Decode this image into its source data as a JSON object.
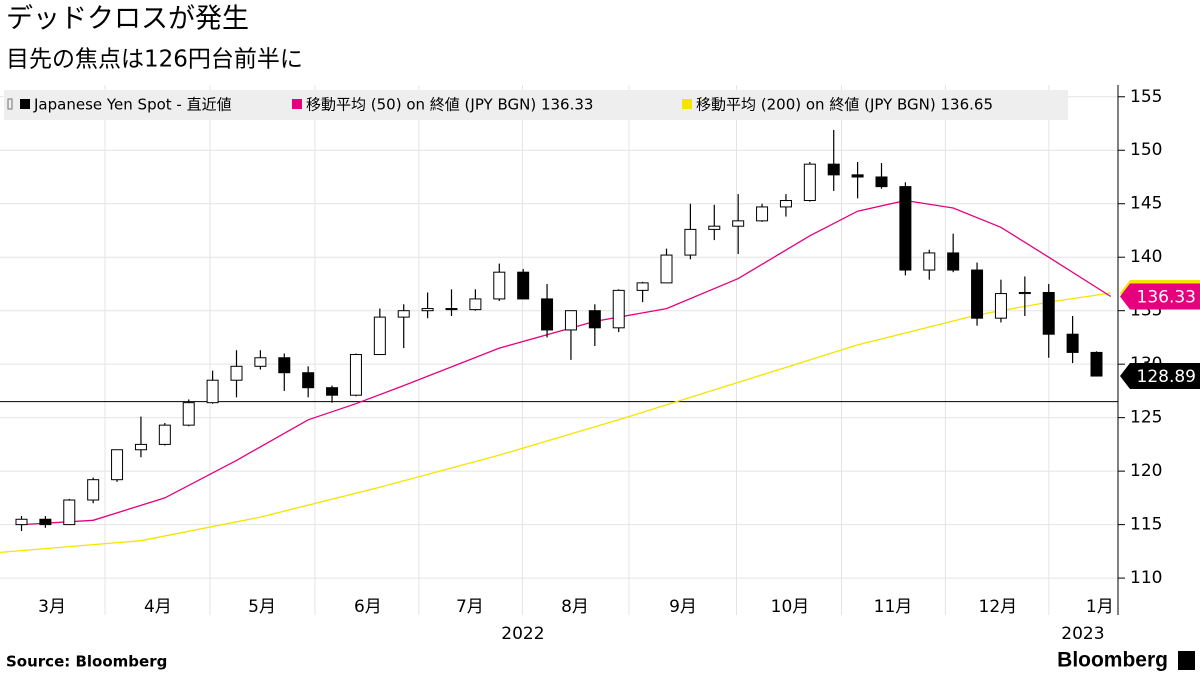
{
  "chart_data": {
    "type": "candlestick",
    "title": "デッドクロスが発生",
    "subtitle": "目先の焦点は126円台前半に",
    "source": "Source:  Bloomberg",
    "brand": "Bloomberg",
    "ylim": [
      108.7,
      156.1
    ],
    "yticks": [
      110,
      115,
      120,
      125,
      130,
      135,
      140,
      145,
      150,
      155
    ],
    "xlim": [
      -0.9,
      45.9
    ],
    "xticks": [
      {
        "value": 1.28,
        "label": "3月"
      },
      {
        "value": 5.71,
        "label": "4月"
      },
      {
        "value": 10.07,
        "label": "5月"
      },
      {
        "value": 14.5,
        "label": "6月"
      },
      {
        "value": 18.77,
        "label": "7月"
      },
      {
        "value": 23.17,
        "label": "8月"
      },
      {
        "value": 27.69,
        "label": "9月"
      },
      {
        "value": 32.17,
        "label": "10月"
      },
      {
        "value": 36.48,
        "label": "11月"
      },
      {
        "value": 40.87,
        "label": "12月"
      },
      {
        "value": 45.14,
        "label": "1月"
      }
    ],
    "year_ticks": [
      {
        "value": 20.99,
        "label": "2022"
      },
      {
        "value": 44.43,
        "label": "2023"
      }
    ],
    "grid": true,
    "reference_line": 126.5,
    "candles": {
      "name": "Japanese Yen Spot - 直近値",
      "color": "#000000",
      "x": [
        0,
        1,
        2,
        3,
        4,
        5,
        6,
        7,
        8,
        9,
        10,
        11,
        12,
        13,
        14,
        15,
        16,
        17,
        18,
        19,
        20,
        21,
        22,
        23,
        24,
        25,
        26,
        27,
        28,
        29,
        30,
        31,
        32,
        33,
        34,
        35,
        36,
        37,
        38,
        39,
        40,
        41,
        42,
        43,
        44,
        45
      ],
      "open": [
        115.0,
        115.5,
        115.0,
        117.3,
        119.2,
        122.0,
        122.5,
        124.3,
        126.4,
        128.5,
        129.8,
        130.6,
        129.2,
        127.8,
        127.1,
        130.9,
        134.4,
        135.0,
        135.2,
        135.1,
        136.1,
        138.6,
        136.1,
        133.2,
        135.0,
        133.4,
        136.9,
        137.6,
        140.2,
        142.6,
        142.9,
        143.4,
        144.7,
        145.3,
        148.7,
        147.7,
        147.5,
        146.6,
        138.8,
        140.4,
        138.8,
        134.3,
        136.6,
        136.7,
        132.8,
        131.1
      ],
      "high": [
        115.8,
        115.8,
        117.4,
        119.4,
        122.0,
        125.1,
        124.5,
        126.7,
        129.4,
        131.3,
        131.3,
        131.0,
        129.8,
        128.0,
        131.0,
        135.2,
        135.6,
        136.7,
        137.0,
        137.0,
        139.4,
        138.9,
        137.5,
        135.0,
        135.6,
        137.0,
        137.7,
        140.8,
        145.0,
        144.9,
        145.9,
        145.0,
        145.9,
        148.9,
        151.9,
        148.9,
        148.8,
        147.0,
        140.7,
        142.2,
        139.5,
        137.9,
        138.2,
        137.5,
        134.5,
        131.2
      ],
      "low": [
        114.4,
        114.7,
        115.0,
        117.0,
        119.0,
        121.3,
        122.4,
        124.2,
        126.3,
        126.9,
        129.5,
        127.5,
        126.9,
        126.4,
        127.0,
        130.9,
        131.5,
        134.3,
        134.5,
        135.0,
        135.9,
        136.3,
        132.5,
        130.4,
        131.7,
        133.0,
        135.8,
        137.6,
        139.8,
        141.6,
        140.3,
        143.3,
        143.8,
        145.2,
        146.2,
        145.5,
        146.4,
        138.3,
        137.9,
        138.6,
        133.6,
        133.9,
        134.5,
        130.6,
        130.1,
        128.9
      ],
      "close": [
        115.5,
        115.0,
        117.3,
        119.2,
        122.0,
        122.5,
        124.3,
        126.4,
        128.5,
        129.8,
        130.6,
        129.2,
        127.8,
        127.1,
        130.9,
        134.4,
        135.0,
        135.2,
        135.1,
        136.1,
        138.6,
        136.1,
        133.2,
        135.0,
        133.4,
        136.9,
        137.6,
        140.2,
        142.6,
        142.9,
        143.4,
        144.7,
        145.3,
        148.7,
        147.7,
        147.5,
        146.6,
        138.8,
        140.4,
        138.8,
        134.3,
        136.6,
        136.7,
        132.8,
        131.1,
        128.89
      ]
    },
    "series": [
      {
        "name": "移動平均 (50)  on 終値 (JPY BGN) 136.33",
        "color": "#e6007e",
        "x": [
          0,
          3,
          6,
          9,
          12,
          14,
          16,
          20,
          24,
          27,
          30,
          33,
          35,
          37,
          39,
          41,
          43,
          45.6
        ],
        "values": [
          115.0,
          115.4,
          117.5,
          121.0,
          124.8,
          126.3,
          128.0,
          131.5,
          134.0,
          135.2,
          138.0,
          142.0,
          144.3,
          145.3,
          144.6,
          142.8,
          140.0,
          136.33
        ]
      },
      {
        "name": "移動平均 (200)  on 終値 (JPY BGN) 136.65",
        "color": "#f5e400",
        "x": [
          -0.9,
          5,
          10,
          15,
          20,
          25,
          30,
          35,
          40,
          43,
          45.6
        ],
        "values": [
          112.4,
          113.5,
          115.7,
          118.5,
          121.5,
          124.8,
          128.3,
          131.8,
          134.6,
          135.8,
          136.65
        ]
      }
    ]
  }
}
